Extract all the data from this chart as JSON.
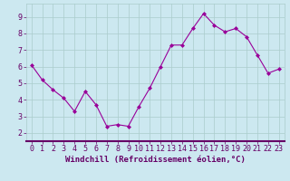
{
  "x": [
    0,
    1,
    2,
    3,
    4,
    5,
    6,
    7,
    8,
    9,
    10,
    11,
    12,
    13,
    14,
    15,
    16,
    17,
    18,
    19,
    20,
    21,
    22,
    23
  ],
  "y": [
    6.1,
    5.2,
    4.6,
    4.1,
    3.3,
    4.5,
    3.7,
    2.4,
    2.5,
    2.4,
    3.6,
    4.7,
    6.0,
    7.3,
    7.3,
    8.3,
    9.2,
    8.5,
    8.1,
    8.3,
    7.8,
    6.7,
    5.6,
    5.85
  ],
  "line_color": "#990099",
  "marker": "D",
  "marker_size": 2,
  "bg_color": "#cce8f0",
  "grid_color": "#aacccc",
  "xlabel": "Windchill (Refroidissement éolien,°C)",
  "xlabel_color": "#660066",
  "xlabel_fontsize": 6.5,
  "tick_color": "#660066",
  "tick_fontsize": 6,
  "xlim": [
    -0.5,
    23.5
  ],
  "ylim": [
    1.5,
    9.8
  ],
  "yticks": [
    2,
    3,
    4,
    5,
    6,
    7,
    8,
    9
  ],
  "xticks": [
    0,
    1,
    2,
    3,
    4,
    5,
    6,
    7,
    8,
    9,
    10,
    11,
    12,
    13,
    14,
    15,
    16,
    17,
    18,
    19,
    20,
    21,
    22,
    23
  ]
}
